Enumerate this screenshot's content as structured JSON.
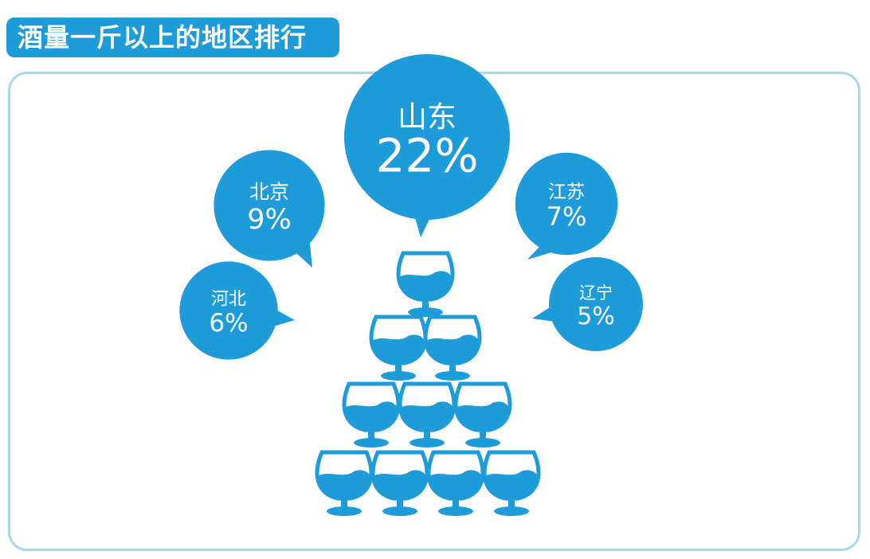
{
  "header": {
    "title": "酒量一斤以上的地区排行"
  },
  "colors": {
    "accent": "#1e9bd9",
    "panel_border": "#a9d7ec",
    "text_on_accent": "#ffffff"
  },
  "chart_data": {
    "type": "bubble-infographic",
    "title": "酒量一斤以上的地区排行",
    "categories": [
      "山东",
      "北京",
      "江苏",
      "河北",
      "辽宁"
    ],
    "values": [
      22,
      9,
      7,
      6,
      5
    ],
    "labels": [
      "22%",
      "9%",
      "7%",
      "6%",
      "5%"
    ],
    "unit": "%",
    "legend": "none",
    "grid": false,
    "decoration": "glass-pyramid-icon"
  }
}
